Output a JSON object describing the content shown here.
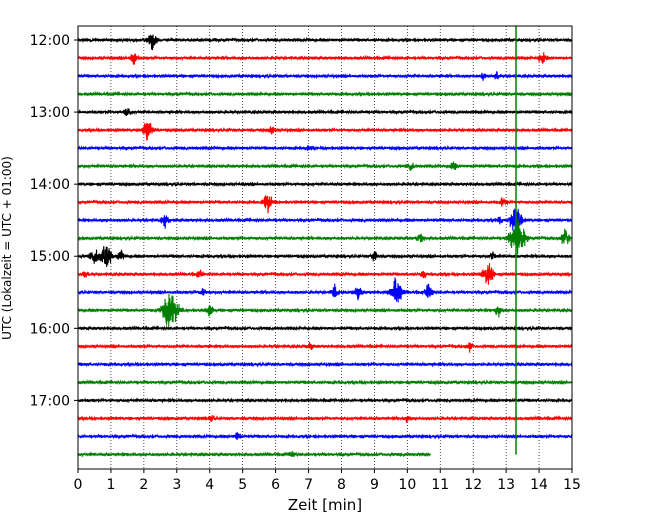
{
  "chart_data": {
    "type": "line",
    "title": "",
    "xlabel": "Zeit  [min]",
    "ylabel": "UTC (Lokalzeit = UTC + 01:00)",
    "xlim": [
      0,
      15
    ],
    "x_ticks": [
      "0",
      "1",
      "2",
      "3",
      "4",
      "5",
      "6",
      "7",
      "8",
      "9",
      "10",
      "11",
      "12",
      "13",
      "14",
      "15"
    ],
    "y_tick_labels": [
      "12:00",
      "13:00",
      "14:00",
      "15:00",
      "16:00",
      "17:00"
    ],
    "x_grid": "dotted vertical lines at each minute",
    "legend": "none",
    "trace_interval_minutes": 15,
    "trace_colors": [
      "#000000",
      "#ff0000",
      "#0000ff",
      "#008000"
    ],
    "traces": [
      {
        "start": "12:00",
        "color": "#000000",
        "events": [
          [
            2.25,
            1.4
          ]
        ]
      },
      {
        "start": "12:15",
        "color": "#ff0000",
        "events": [
          [
            1.7,
            0.9
          ],
          [
            14.1,
            0.9
          ]
        ]
      },
      {
        "start": "12:30",
        "color": "#0000ff",
        "events": [
          [
            12.3,
            0.5
          ],
          [
            12.7,
            0.5
          ]
        ]
      },
      {
        "start": "12:45",
        "color": "#008000",
        "events": []
      },
      {
        "start": "13:00",
        "color": "#000000",
        "events": [
          [
            1.5,
            0.8
          ]
        ]
      },
      {
        "start": "13:15",
        "color": "#ff0000",
        "events": [
          [
            2.1,
            1.6
          ],
          [
            5.9,
            0.6
          ]
        ]
      },
      {
        "start": "13:30",
        "color": "#0000ff",
        "events": [
          [
            7.0,
            0.5
          ]
        ]
      },
      {
        "start": "13:45",
        "color": "#008000",
        "events": [
          [
            10.1,
            0.7
          ],
          [
            11.4,
            0.6
          ]
        ]
      },
      {
        "start": "14:00",
        "color": "#000000",
        "events": []
      },
      {
        "start": "14:15",
        "color": "#ff0000",
        "events": [
          [
            5.75,
            1.6
          ],
          [
            12.9,
            0.7
          ]
        ]
      },
      {
        "start": "14:30",
        "color": "#0000ff",
        "events": [
          [
            2.65,
            0.9
          ],
          [
            12.8,
            0.6
          ],
          [
            13.3,
            2.2
          ]
        ]
      },
      {
        "start": "14:45",
        "color": "#008000",
        "events": [
          [
            10.4,
            0.7
          ],
          [
            13.35,
            3.2
          ],
          [
            14.8,
            1.3
          ]
        ]
      },
      {
        "start": "15:00",
        "color": "#000000",
        "events": [
          [
            0.5,
            1.3
          ],
          [
            0.85,
            2.0
          ],
          [
            1.3,
            1.0
          ],
          [
            9.0,
            0.7
          ],
          [
            12.6,
            0.6
          ]
        ]
      },
      {
        "start": "15:15",
        "color": "#ff0000",
        "events": [
          [
            0.2,
            0.6
          ],
          [
            3.7,
            0.6
          ],
          [
            10.5,
            0.5
          ],
          [
            12.45,
            1.8
          ]
        ]
      },
      {
        "start": "15:30",
        "color": "#0000ff",
        "events": [
          [
            3.8,
            0.5
          ],
          [
            7.8,
            0.8
          ],
          [
            8.5,
            1.0
          ],
          [
            9.65,
            2.2
          ],
          [
            10.65,
            1.2
          ]
        ]
      },
      {
        "start": "15:45",
        "color": "#008000",
        "events": [
          [
            2.8,
            3.4
          ],
          [
            4.0,
            0.8
          ],
          [
            12.75,
            0.9
          ]
        ]
      },
      {
        "start": "16:00",
        "color": "#000000",
        "events": []
      },
      {
        "start": "16:15",
        "color": "#ff0000",
        "events": [
          [
            7.05,
            0.6
          ],
          [
            11.9,
            0.6
          ]
        ]
      },
      {
        "start": "16:30",
        "color": "#0000ff",
        "events": []
      },
      {
        "start": "16:45",
        "color": "#008000",
        "events": []
      },
      {
        "start": "17:00",
        "color": "#000000",
        "events": []
      },
      {
        "start": "17:15",
        "color": "#ff0000",
        "events": [
          [
            4.05,
            0.5
          ],
          [
            10.0,
            0.5
          ]
        ]
      },
      {
        "start": "17:30",
        "color": "#0000ff",
        "events": [
          [
            4.85,
            0.6
          ]
        ]
      },
      {
        "start": "17:45",
        "color": "#008000",
        "end_minute": 10.7,
        "events": [
          [
            6.5,
            0.5
          ]
        ]
      }
    ],
    "vertical_marker": {
      "x": 13.3,
      "color": "#008000"
    }
  }
}
